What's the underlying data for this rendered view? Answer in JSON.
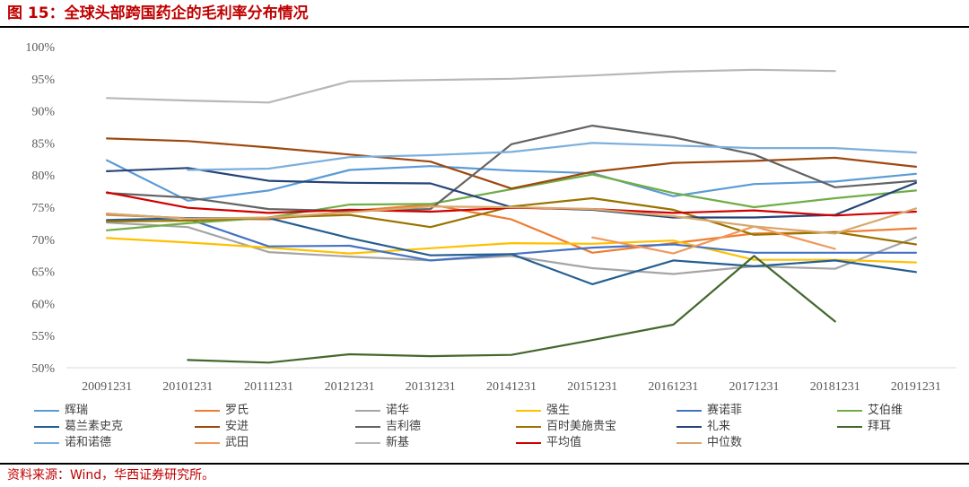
{
  "figure": {
    "caption": "图 15：全球头部跨国药企的毛利率分布情况",
    "source": "资料来源：Wind，华西证券研究所。",
    "accent_color": "#C00000",
    "rule_color": "#000000"
  },
  "chart_data": {
    "type": "line",
    "categories": [
      "20091231",
      "20101231",
      "20111231",
      "20121231",
      "20131231",
      "20141231",
      "20151231",
      "20161231",
      "20171231",
      "20181231",
      "20191231"
    ],
    "ylim": [
      50,
      100
    ],
    "yticks": [
      100,
      95,
      90,
      85,
      80,
      75,
      70,
      65,
      60,
      55,
      50
    ],
    "ytick_labels": [
      "100%",
      "95%",
      "90%",
      "85%",
      "80%",
      "75%",
      "70%",
      "65%",
      "60%",
      "55%",
      "50%"
    ],
    "grid": false,
    "legend_position": "bottom",
    "series": [
      {
        "name": "辉瑞",
        "color": "#5B9BD5",
        "values": [
          82.3,
          76.0,
          77.6,
          80.8,
          81.4,
          80.7,
          80.3,
          76.7,
          78.6,
          79.0,
          80.2
        ]
      },
      {
        "name": "罗氏",
        "color": "#ED7D31",
        "values": [
          73.8,
          73.3,
          73.1,
          74.4,
          75.4,
          73.1,
          67.9,
          69.4,
          70.9,
          71.1,
          71.7
        ]
      },
      {
        "name": "诺华",
        "color": "#A5A5A5",
        "values": [
          72.6,
          71.9,
          68.0,
          67.3,
          66.7,
          67.4,
          65.5,
          64.6,
          65.8,
          65.4,
          70.3
        ]
      },
      {
        "name": "强生",
        "color": "#FFC000",
        "values": [
          70.2,
          69.5,
          68.7,
          67.8,
          68.6,
          69.4,
          69.3,
          69.8,
          66.8,
          66.8,
          66.4
        ]
      },
      {
        "name": "赛诺菲",
        "color": "#4472C4",
        "values": [
          74.0,
          73.2,
          68.9,
          69.0,
          66.7,
          67.7,
          68.7,
          69.2,
          67.9,
          67.9,
          67.9
        ]
      },
      {
        "name": "艾伯维",
        "color": "#70AD47",
        "values": [
          71.4,
          72.5,
          73.4,
          75.4,
          75.5,
          77.8,
          80.1,
          77.2,
          75.0,
          76.4,
          77.6
        ]
      },
      {
        "name": "葛兰素史克",
        "color": "#255E91",
        "values": [
          73.0,
          73.3,
          73.3,
          70.2,
          67.5,
          67.7,
          63.0,
          66.7,
          65.8,
          66.7,
          64.9
        ]
      },
      {
        "name": "安进",
        "color": "#9E480E",
        "values": [
          85.7,
          85.3,
          84.3,
          83.2,
          82.1,
          77.9,
          80.5,
          81.9,
          82.2,
          82.7,
          81.3
        ]
      },
      {
        "name": "吉利德",
        "color": "#636363",
        "values": [
          77.2,
          76.5,
          74.7,
          74.4,
          74.7,
          84.8,
          87.7,
          85.9,
          83.2,
          78.1,
          79.1
        ]
      },
      {
        "name": "百时美施贵宝",
        "color": "#997300",
        "values": [
          72.8,
          72.9,
          73.4,
          73.8,
          71.9,
          75.1,
          76.4,
          74.6,
          70.7,
          71.1,
          69.2
        ]
      },
      {
        "name": "礼来",
        "color": "#264478",
        "values": [
          80.6,
          81.1,
          79.1,
          78.8,
          78.7,
          75.0,
          74.6,
          73.4,
          73.4,
          73.8,
          78.8
        ]
      },
      {
        "name": "拜耳",
        "color": "#43682B",
        "values": [
          null,
          51.2,
          50.8,
          52.1,
          51.8,
          52.0,
          54.3,
          56.7,
          67.4,
          57.2,
          null
        ]
      },
      {
        "name": "诺和诺德",
        "color": "#7CAFDD",
        "values": [
          null,
          80.8,
          81.0,
          82.8,
          83.1,
          83.6,
          85.0,
          84.6,
          84.2,
          84.2,
          83.5
        ]
      },
      {
        "name": "武田",
        "color": "#F1975A",
        "values": [
          null,
          null,
          null,
          null,
          null,
          null,
          70.3,
          67.8,
          72.0,
          68.5,
          null
        ]
      },
      {
        "name": "新基",
        "color": "#B7B7B7",
        "values": [
          92.0,
          91.6,
          91.3,
          94.6,
          94.8,
          95.0,
          95.5,
          96.1,
          96.4,
          96.2,
          null
        ]
      },
      {
        "name": "平均值",
        "color": "#D00000",
        "values": [
          77.3,
          74.9,
          74.1,
          74.6,
          74.3,
          74.9,
          74.7,
          74.1,
          74.5,
          73.7,
          74.3
        ]
      },
      {
        "name": "中位数",
        "color": "#D6A86C",
        "values": [
          74.0,
          73.2,
          73.4,
          74.2,
          75.1,
          75.0,
          74.7,
          73.6,
          72.0,
          70.9,
          74.8
        ]
      }
    ]
  }
}
